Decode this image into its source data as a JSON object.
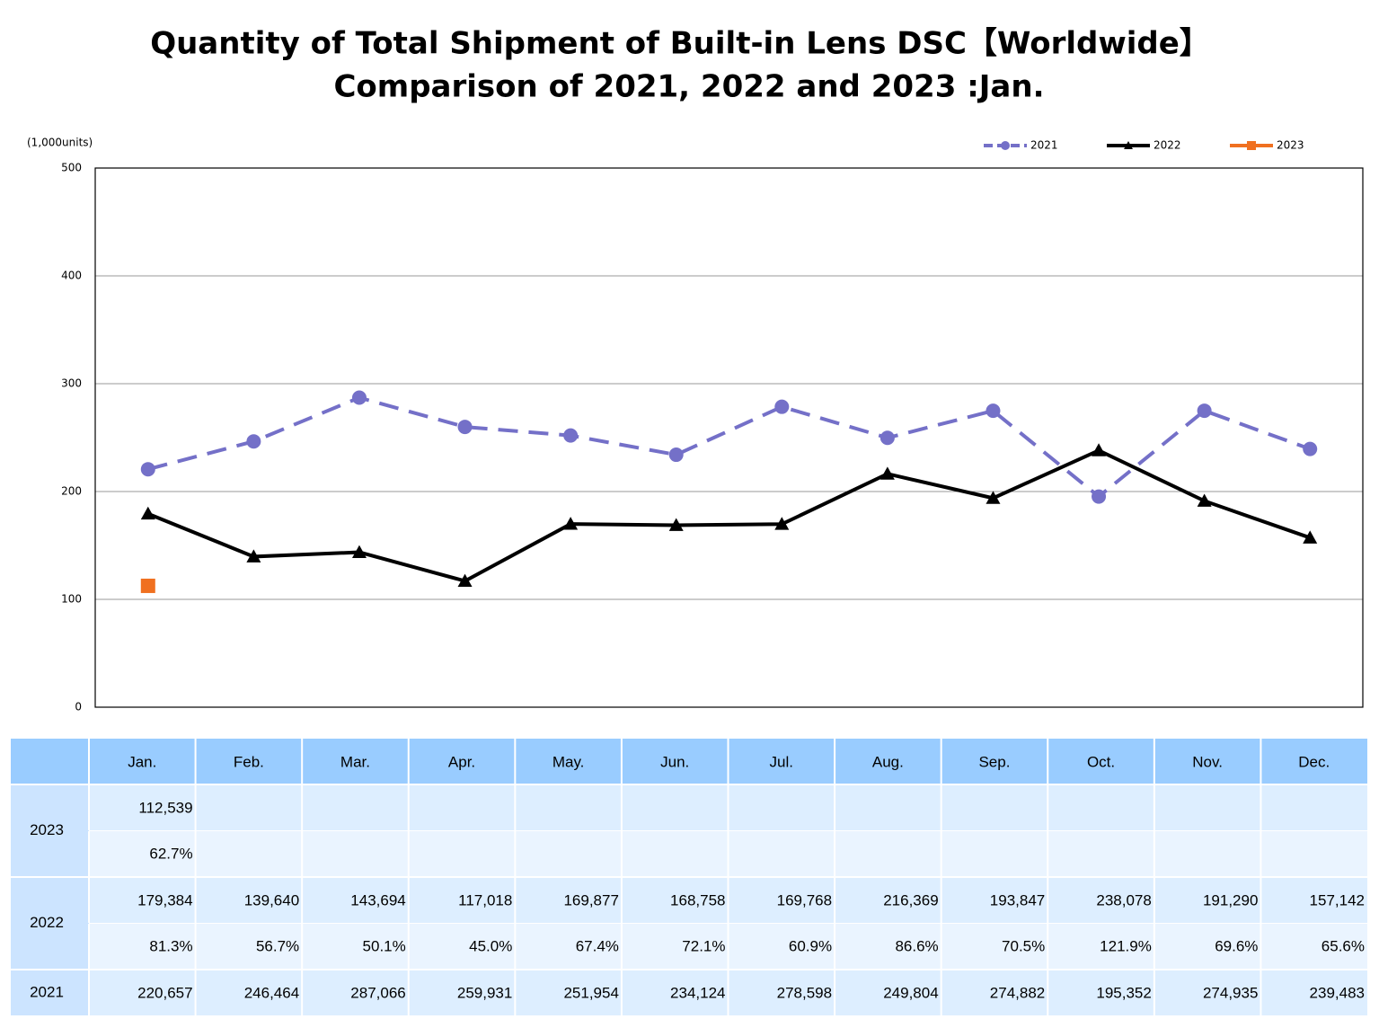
{
  "chart_data": {
    "type": "line",
    "title": [
      "Quantity of Total Shipment of Built-in Lens DSC【Worldwide】",
      "Comparison of 2021, 2022 and 2023 :Jan."
    ],
    "y_label": "(1,000units)",
    "categories": [
      "Jan.",
      "Feb.",
      "Mar.",
      "Apr.",
      "May.",
      "Jun.",
      "Jul.",
      "Aug.",
      "Sep.",
      "Oct.",
      "Nov.",
      "Dec."
    ],
    "ylim": [
      0,
      500
    ],
    "yticks": [
      0,
      100,
      200,
      300,
      400,
      500
    ],
    "grid": true,
    "legend": "top-right",
    "series": [
      {
        "name": "2021",
        "color": "#7470c8",
        "marker": "circle",
        "dash": true,
        "values": [
          220.657,
          246.464,
          287.066,
          259.931,
          251.954,
          234.124,
          278.598,
          249.804,
          274.882,
          195.352,
          274.935,
          239.483
        ],
        "value_labels": [
          "220,657",
          "246,464",
          "287,066",
          "259,931",
          "251,954",
          "234,124",
          "278,598",
          "249,804",
          "274,882",
          "195,352",
          "274,935",
          "239,483"
        ]
      },
      {
        "name": "2022",
        "color": "#000000",
        "marker": "triangle",
        "dash": false,
        "values": [
          179.384,
          139.64,
          143.694,
          117.018,
          169.877,
          168.758,
          169.768,
          216.369,
          193.847,
          238.078,
          191.29,
          157.142
        ],
        "value_labels": [
          "179,384",
          "139,640",
          "143,694",
          "117,018",
          "169,877",
          "168,758",
          "169,768",
          "216,369",
          "193,847",
          "238,078",
          "191,290",
          "157,142"
        ],
        "yoy": [
          "81.3%",
          "56.7%",
          "50.1%",
          "45.0%",
          "67.4%",
          "72.1%",
          "60.9%",
          "86.6%",
          "70.5%",
          "121.9%",
          "69.6%",
          "65.6%"
        ]
      },
      {
        "name": "2023",
        "color": "#f07020",
        "marker": "square",
        "dash": false,
        "values": [
          112.539,
          null,
          null,
          null,
          null,
          null,
          null,
          null,
          null,
          null,
          null,
          null
        ],
        "value_labels": [
          "112,539",
          null,
          null,
          null,
          null,
          null,
          null,
          null,
          null,
          null,
          null,
          null
        ],
        "yoy": [
          "62.7%",
          null,
          null,
          null,
          null,
          null,
          null,
          null,
          null,
          null,
          null,
          null
        ]
      }
    ]
  }
}
